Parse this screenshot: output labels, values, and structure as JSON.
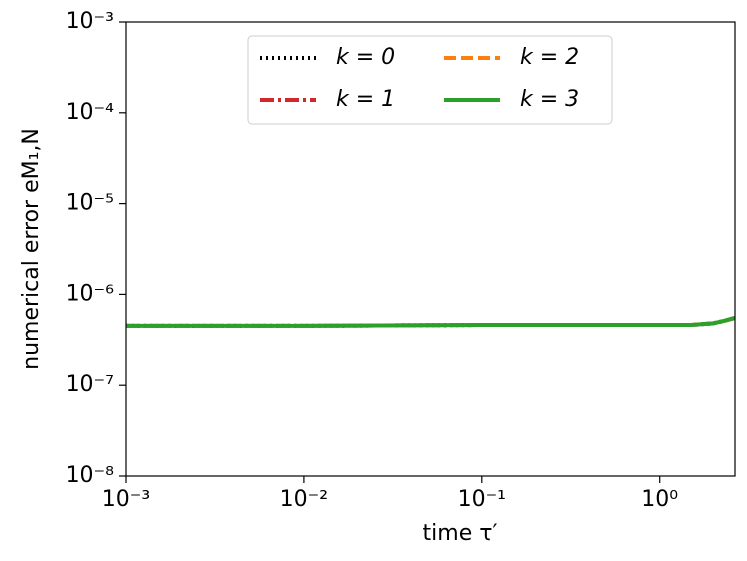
{
  "chart_data": {
    "type": "line",
    "xlabel": "time τ′",
    "ylabel": "numerical error eM₁,N",
    "xscale": "log",
    "yscale": "log",
    "xlim": [
      0.001,
      2.65
    ],
    "ylim": [
      1e-08,
      0.001
    ],
    "xticks": [
      {
        "value": 0.001,
        "label": "10⁻³"
      },
      {
        "value": 0.01,
        "label": "10⁻²"
      },
      {
        "value": 0.1,
        "label": "10⁻¹"
      },
      {
        "value": 1,
        "label": "10⁰"
      }
    ],
    "yticks": [
      {
        "value": 1e-08,
        "label": "10⁻⁸"
      },
      {
        "value": 1e-07,
        "label": "10⁻⁷"
      },
      {
        "value": 1e-06,
        "label": "10⁻⁶"
      },
      {
        "value": 1e-05,
        "label": "10⁻⁵"
      },
      {
        "value": 0.0001,
        "label": "10⁻⁴"
      },
      {
        "value": 0.001,
        "label": "10⁻³"
      }
    ],
    "legend": "upper center",
    "series": [
      {
        "name": "k = 0",
        "color": "#000000",
        "dash": "dotted",
        "x": [
          0.001,
          0.01,
          0.1,
          0.5,
          1,
          1.5,
          2,
          2.3,
          2.65
        ],
        "values": [
          4.5e-07,
          4.5e-07,
          4.6e-07,
          4.6e-07,
          4.6e-07,
          4.6e-07,
          4.8e-07,
          5.1e-07,
          5.5e-07
        ]
      },
      {
        "name": "k = 1",
        "color": "#d62728",
        "dash": "dashdot",
        "x": [
          0.001,
          0.01,
          0.1,
          0.5,
          1,
          1.5,
          2,
          2.3,
          2.65
        ],
        "values": [
          4.5e-07,
          4.5e-07,
          4.6e-07,
          4.6e-07,
          4.6e-07,
          4.6e-07,
          4.8e-07,
          5.1e-07,
          5.5e-07
        ]
      },
      {
        "name": "k = 2",
        "color": "#ff7f0e",
        "dash": "dashed",
        "x": [
          0.001,
          0.01,
          0.1,
          0.5,
          1,
          1.5,
          2,
          2.3,
          2.65
        ],
        "values": [
          4.5e-07,
          4.5e-07,
          4.6e-07,
          4.6e-07,
          4.6e-07,
          4.6e-07,
          4.8e-07,
          5.1e-07,
          5.5e-07
        ]
      },
      {
        "name": "k = 3",
        "color": "#2ca02c",
        "dash": "solid",
        "x": [
          0.001,
          0.01,
          0.1,
          0.5,
          1,
          1.5,
          2,
          2.3,
          2.65
        ],
        "values": [
          4.5e-07,
          4.5e-07,
          4.6e-07,
          4.6e-07,
          4.6e-07,
          4.6e-07,
          4.8e-07,
          5.1e-07,
          5.5e-07
        ]
      }
    ]
  }
}
